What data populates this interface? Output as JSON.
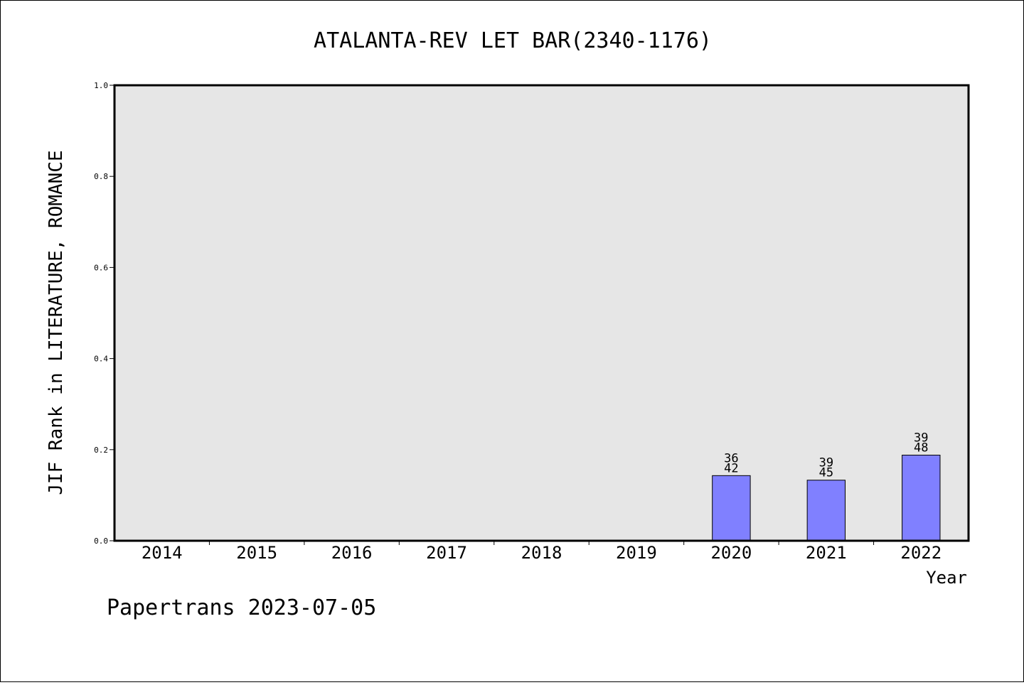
{
  "chart_data": {
    "type": "bar",
    "title": "ATALANTA-REV LET BAR(2340-1176)",
    "xlabel": "Year",
    "ylabel": "JIF Rank in LITERATURE, ROMANCE",
    "ylim": [
      0,
      1.0
    ],
    "yticks": [
      "0.0",
      "0.2",
      "0.4",
      "0.6",
      "0.8",
      "1.0"
    ],
    "categories": [
      "2014",
      "2015",
      "2016",
      "2017",
      "2018",
      "2019",
      "2020",
      "2021",
      "2022"
    ],
    "values": [
      null,
      null,
      null,
      null,
      null,
      null,
      0.143,
      0.133,
      0.188
    ],
    "labels": [
      null,
      null,
      null,
      null,
      null,
      null,
      {
        "rank": "36",
        "total": "42"
      },
      {
        "rank": "39",
        "total": "45"
      },
      {
        "rank": "39",
        "total": "48"
      }
    ],
    "bar_color": "#8080ff",
    "plot_background": "#e6e6e6",
    "grid": false,
    "footer": "Papertrans 2023-07-05"
  }
}
